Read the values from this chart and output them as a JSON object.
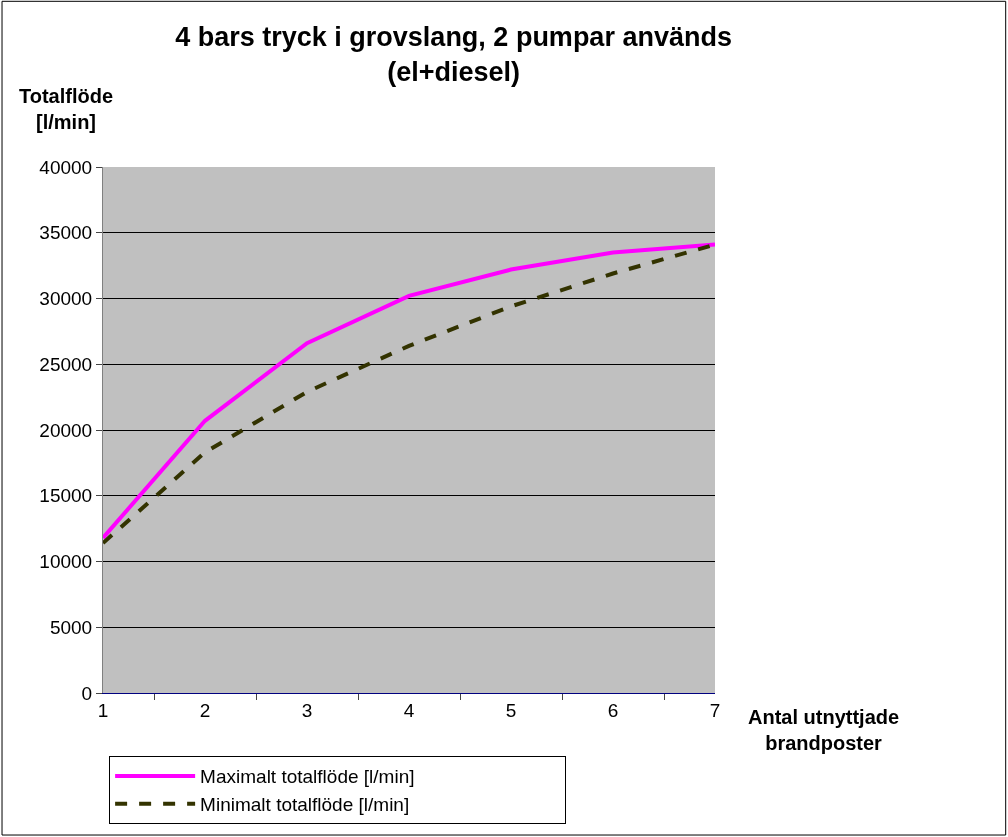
{
  "chart_data": {
    "type": "line",
    "title": "4 bars tryck i grovslang, 2 pumpar används\n(el+diesel)",
    "xlabel": "Antal utnyttjade\nbrandposter",
    "ylabel": "Totalflöde\n[l/min]",
    "categories": [
      "1",
      "2",
      "3",
      "4",
      "5",
      "6",
      "7"
    ],
    "series": [
      {
        "name": "Maximalt totalflöde [l/min]",
        "color": "#ff00ff",
        "line_style": "solid",
        "values": [
          11800,
          20700,
          26600,
          30200,
          32200,
          33500,
          34100
        ]
      },
      {
        "name": "Minimalt totalflöde [l/min]",
        "color": "#333300",
        "line_style": "dashed",
        "values": [
          11400,
          18300,
          22900,
          26400,
          29400,
          31900,
          34100
        ]
      }
    ],
    "ylim": [
      0,
      40000
    ],
    "yticks": [
      0,
      5000,
      10000,
      15000,
      20000,
      25000,
      30000,
      35000,
      40000
    ],
    "grid": "y",
    "legend": "bottom",
    "marker": "none"
  }
}
